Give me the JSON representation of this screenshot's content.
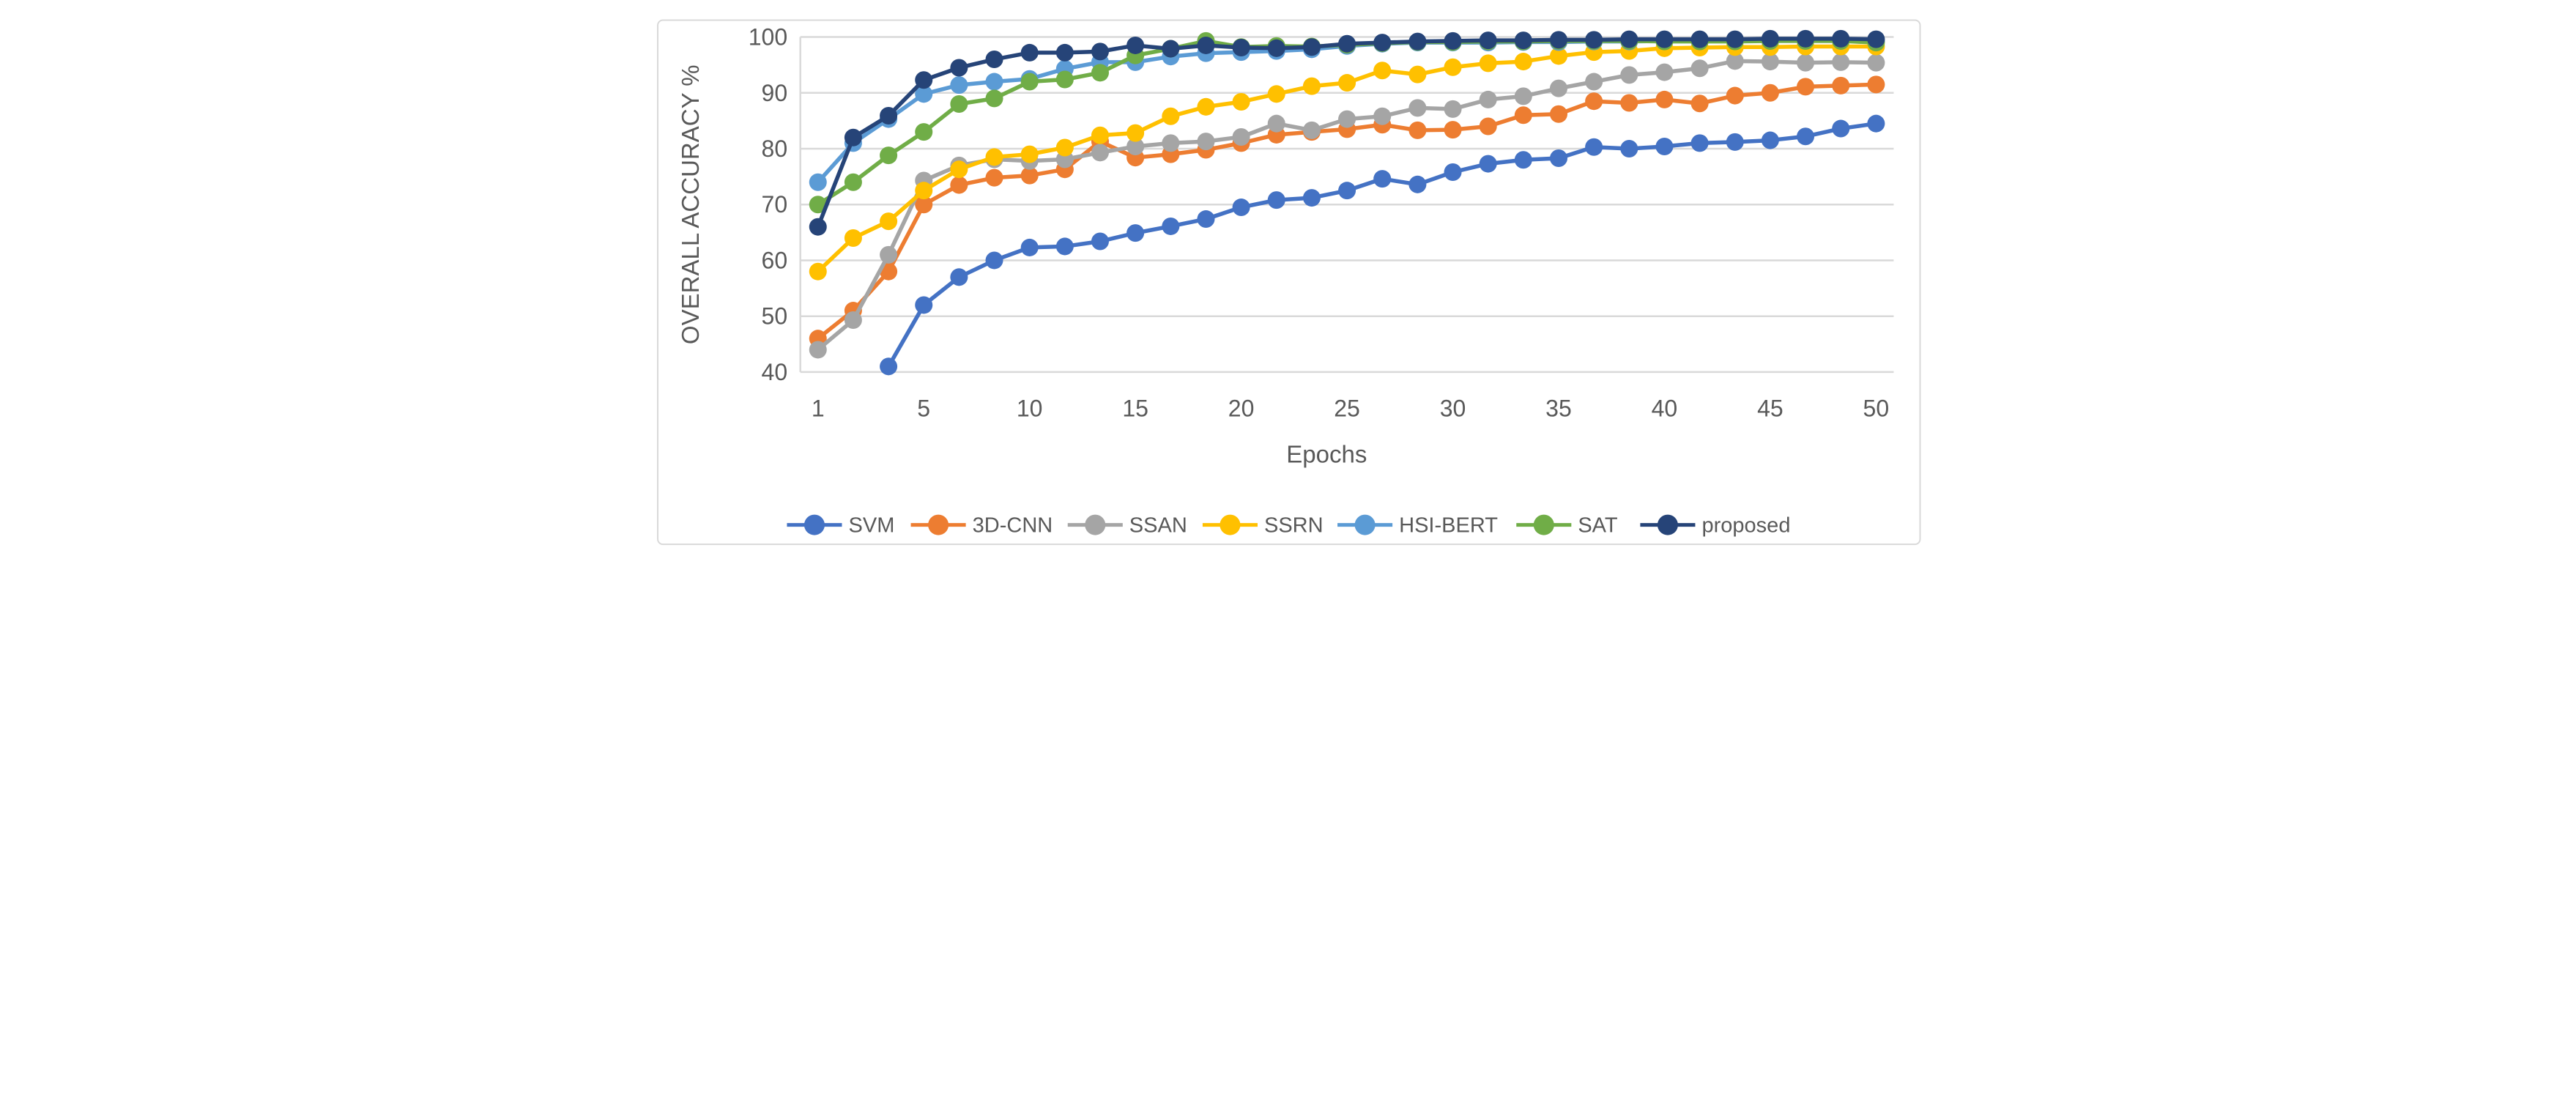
{
  "chart_data": {
    "type": "line",
    "title": "",
    "xlabel": "Epochs",
    "ylabel": "OVERALL ACCURACY %",
    "ylim": [
      40,
      100
    ],
    "yticks": [
      40,
      50,
      60,
      70,
      80,
      90,
      100
    ],
    "x_categories": [
      1,
      2,
      3,
      5,
      7,
      8,
      10,
      12,
      13,
      15,
      17,
      18,
      20,
      22,
      23,
      25,
      27,
      28,
      30,
      32,
      33,
      35,
      37,
      38,
      40,
      42,
      43,
      45,
      47,
      48,
      50
    ],
    "xtick_indices": [
      0,
      3,
      6,
      9,
      12,
      15,
      18,
      21,
      24,
      27,
      30
    ],
    "xtick_labels": [
      "1",
      "5",
      "10",
      "15",
      "20",
      "25",
      "30",
      "35",
      "40",
      "45",
      "50"
    ],
    "grid": "horizontal",
    "legend_position": "bottom",
    "series": [
      {
        "name": "SVM",
        "color": "#4472C4",
        "values": [
          null,
          null,
          41,
          52,
          57,
          60,
          62.3,
          62.5,
          63.4,
          64.9,
          66.1,
          67.4,
          69.5,
          70.8,
          71.2,
          72.5,
          74.6,
          73.6,
          75.8,
          77.3,
          78,
          78.3,
          80.3,
          80,
          80.4,
          81,
          81.2,
          81.5,
          82.2,
          83.6,
          84.5
        ]
      },
      {
        "name": "3D-CNN",
        "color": "#ED7D31",
        "values": [
          46,
          51,
          58,
          70,
          73.5,
          74.8,
          75.2,
          76.3,
          81.3,
          78.4,
          79,
          79.8,
          81,
          82.5,
          83,
          83.5,
          84.3,
          83.3,
          83.4,
          84,
          86,
          86.2,
          88.5,
          88.2,
          88.8,
          88.1,
          89.5,
          90,
          91.1,
          91.3,
          91.5
        ]
      },
      {
        "name": "SSAN",
        "color": "#A5A5A5",
        "values": [
          44,
          49.3,
          61,
          74.3,
          77,
          78.1,
          77.8,
          78.1,
          79.3,
          80.4,
          81,
          81.3,
          82.1,
          84.5,
          83.3,
          85.3,
          85.8,
          87.3,
          87.1,
          88.8,
          89.4,
          90.8,
          92,
          93.2,
          93.7,
          94.4,
          95.7,
          95.6,
          95.4,
          95.5,
          95.4
        ]
      },
      {
        "name": "SSRN",
        "color": "#FFC000",
        "values": [
          58,
          64,
          67,
          72.5,
          76.3,
          78.5,
          79,
          80.2,
          82.4,
          82.8,
          85.8,
          87.5,
          88.4,
          89.8,
          91.2,
          91.8,
          94,
          93.3,
          94.6,
          95.3,
          95.6,
          96.6,
          97.3,
          97.5,
          98,
          98.1,
          98.2,
          98.2,
          98.3,
          98.3,
          98.3
        ]
      },
      {
        "name": "HSI-BERT",
        "color": "#5B9BD5",
        "values": [
          74,
          81,
          85.3,
          89.8,
          91.4,
          92,
          92.5,
          94.3,
          95.5,
          95.5,
          96.5,
          97.1,
          97.3,
          97.5,
          97.8,
          98.4,
          98.8,
          99,
          99,
          99,
          99.1,
          99.1,
          99.2,
          99.2,
          99.3,
          99.3,
          99.3,
          99.3,
          99.3,
          99.3,
          99.3
        ]
      },
      {
        "name": "SAT",
        "color": "#70AD47",
        "values": [
          70,
          74,
          78.8,
          83,
          88,
          89,
          92,
          92.4,
          93.6,
          96.7,
          97.9,
          99.3,
          98.2,
          98.4,
          98.3,
          98.6,
          98.9,
          99.1,
          99.1,
          99.2,
          99.2,
          99.3,
          99.3,
          99.3,
          99.2,
          99.2,
          99.2,
          99.3,
          99.3,
          99.3,
          99
        ]
      },
      {
        "name": "proposed",
        "color": "#264478",
        "values": [
          66,
          82,
          85.9,
          92.3,
          94.5,
          96,
          97.2,
          97.2,
          97.4,
          98.5,
          97.9,
          98.5,
          98.1,
          98,
          98.2,
          98.8,
          99,
          99.2,
          99.3,
          99.4,
          99.4,
          99.5,
          99.5,
          99.6,
          99.6,
          99.6,
          99.6,
          99.7,
          99.7,
          99.7,
          99.6
        ]
      }
    ],
    "colors": {
      "text": "#595959",
      "gridline": "#D9D9D9",
      "frame_border": "#D9D9D9",
      "background": "#FFFFFF"
    }
  }
}
